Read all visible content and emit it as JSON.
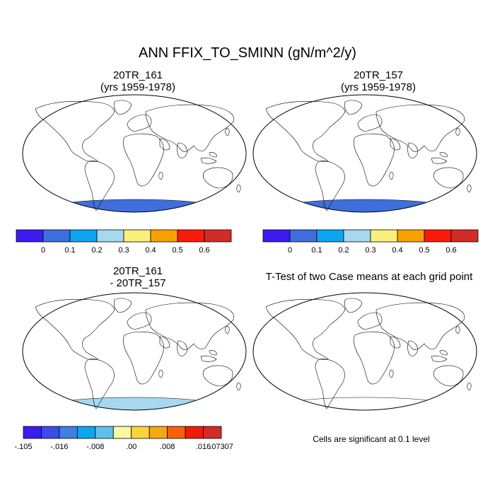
{
  "title": "ANN FFIX_TO_SMINN (gN/m^2/y)",
  "panels": [
    {
      "id": "case1",
      "title_line1": "20TR_161",
      "title_line2": "(yrs 1959-1978)"
    },
    {
      "id": "case2",
      "title_line1": "20TR_157",
      "title_line2": "(yrs 1959-1978)"
    },
    {
      "id": "diff",
      "title_line1": "20TR_161",
      "title_line2": "- 20TR_157"
    },
    {
      "id": "ttest",
      "title_line1": "T-Test of two Case means at each grid point",
      "title_line2": ""
    }
  ],
  "colorbar_main": {
    "colors": [
      "#3b1cf0",
      "#3f6fdc",
      "#0ea5f0",
      "#a6d8ef",
      "#fbef7d",
      "#f8a100",
      "#fa1a0c",
      "#d22c28"
    ],
    "labels": [
      "0",
      "0.1",
      "0.2",
      "0.3",
      "0.4",
      "0.5",
      "0.6"
    ]
  },
  "colorbar_diff": {
    "colors": [
      "#3b1cf0",
      "#3a4de8",
      "#3f7fe0",
      "#0ea5f0",
      "#5fc0ec",
      "#fdf7a0",
      "#fbd43c",
      "#f7a810",
      "#f8600a",
      "#ef1c0a",
      "#d22c28"
    ],
    "labels": [
      "-.105",
      "-.016",
      "-.008",
      ".00",
      ".008",
      ".016",
      ".07307"
    ]
  },
  "significance_note": "Cells are significant at 0.1 level",
  "colors": {
    "ocean": "#ffffff",
    "antarctica_case": "#3f6fdc",
    "antarctica_diff": "#a6d8ef",
    "significant": "#fa0000"
  }
}
